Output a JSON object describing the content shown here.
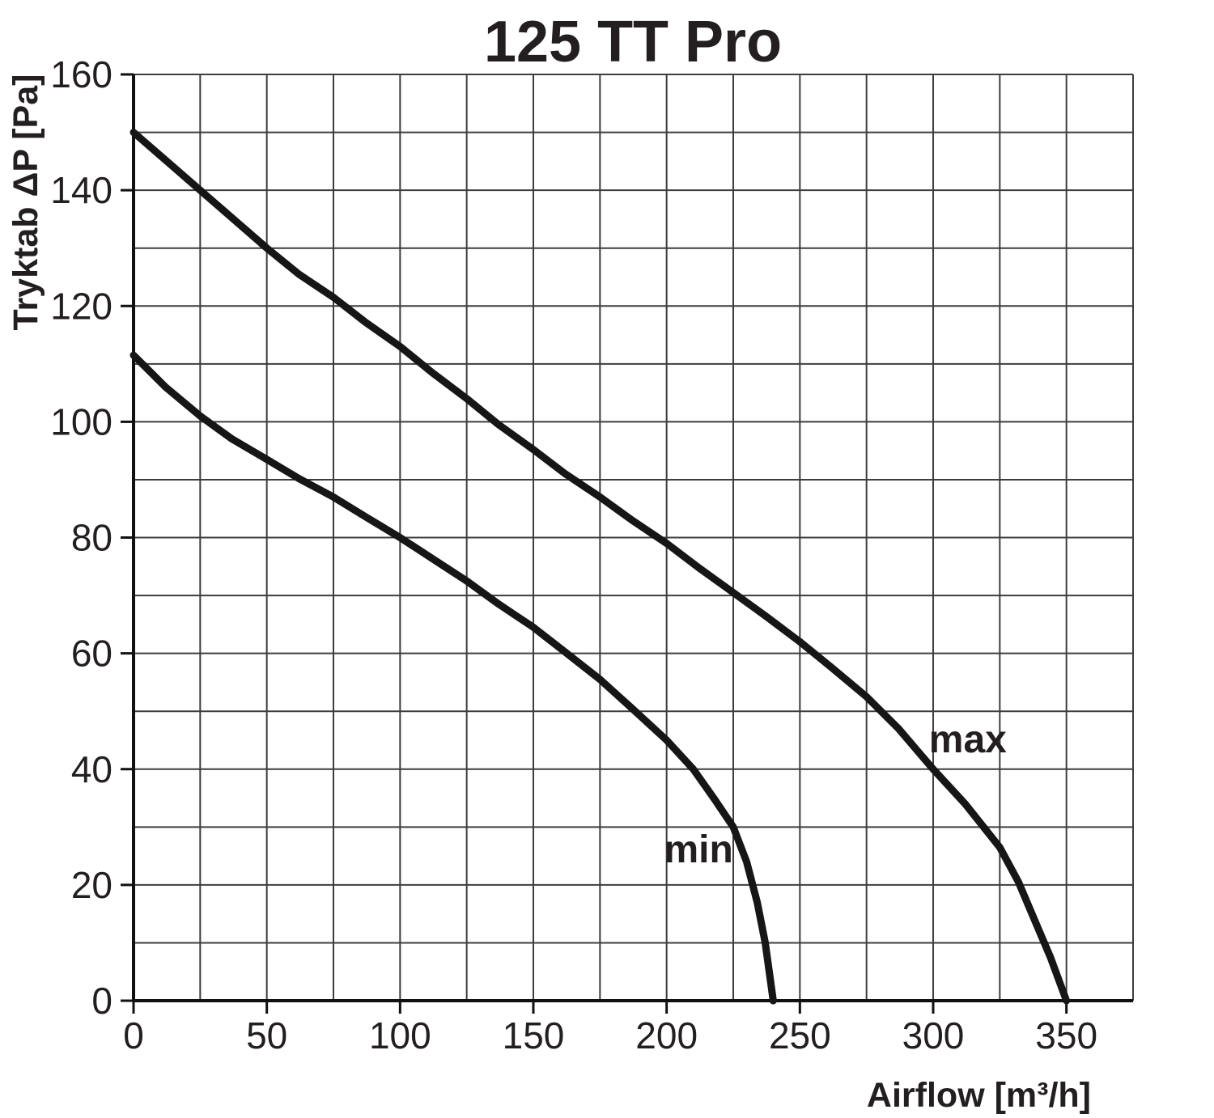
{
  "chart_data": {
    "type": "line",
    "title": "125 TT Pro",
    "xlabel": "Airflow [m³/h]",
    "ylabel": "Tryktab ΔP [Pa]",
    "xlim": [
      0,
      375
    ],
    "ylim": [
      0,
      160
    ],
    "x_tick_labels": [
      0,
      50,
      100,
      150,
      200,
      250,
      300,
      350
    ],
    "x_grid_step": 25,
    "y_tick_labels": [
      0,
      20,
      40,
      60,
      80,
      100,
      120,
      140,
      160
    ],
    "y_grid_step": 10,
    "grid": true,
    "legend_position": "inline-curve-labels",
    "series": [
      {
        "name": "max",
        "label": "max",
        "label_at": [
          313,
          45
        ],
        "points": [
          [
            0,
            150
          ],
          [
            12,
            145.2
          ],
          [
            25,
            140
          ],
          [
            37,
            135.2
          ],
          [
            50,
            130
          ],
          [
            62,
            125.5
          ],
          [
            75,
            121.5
          ],
          [
            87,
            117.2
          ],
          [
            100,
            113
          ],
          [
            112,
            108.5
          ],
          [
            125,
            104
          ],
          [
            137,
            99.5
          ],
          [
            150,
            95.2
          ],
          [
            162,
            91
          ],
          [
            175,
            87
          ],
          [
            187,
            83
          ],
          [
            200,
            79
          ],
          [
            212,
            74.8
          ],
          [
            225,
            70.5
          ],
          [
            237,
            66.5
          ],
          [
            250,
            62
          ],
          [
            262,
            57.5
          ],
          [
            275,
            52.5
          ],
          [
            287,
            47
          ],
          [
            300,
            40
          ],
          [
            312,
            34
          ],
          [
            325,
            26.5
          ],
          [
            332,
            20.5
          ],
          [
            338,
            14
          ],
          [
            344,
            7.5
          ],
          [
            350,
            0
          ]
        ]
      },
      {
        "name": "min",
        "label": "min",
        "label_at": [
          212,
          26
        ],
        "points": [
          [
            0,
            111.5
          ],
          [
            12,
            106
          ],
          [
            25,
            101
          ],
          [
            37,
            97
          ],
          [
            50,
            93.5
          ],
          [
            62,
            90.2
          ],
          [
            75,
            87
          ],
          [
            87,
            83.6
          ],
          [
            100,
            80
          ],
          [
            112,
            76.4
          ],
          [
            125,
            72.5
          ],
          [
            137,
            68.5
          ],
          [
            150,
            64.5
          ],
          [
            162,
            60.2
          ],
          [
            175,
            55.5
          ],
          [
            187,
            50.5
          ],
          [
            200,
            45
          ],
          [
            210,
            40
          ],
          [
            218,
            34.8
          ],
          [
            225,
            30
          ],
          [
            230,
            24
          ],
          [
            234,
            17
          ],
          [
            237,
            10
          ],
          [
            240,
            0
          ]
        ]
      }
    ],
    "colors": {
      "curve": "#161616",
      "grid": "#3d3d3d",
      "axis": "#111111",
      "text": "#231f20"
    }
  }
}
